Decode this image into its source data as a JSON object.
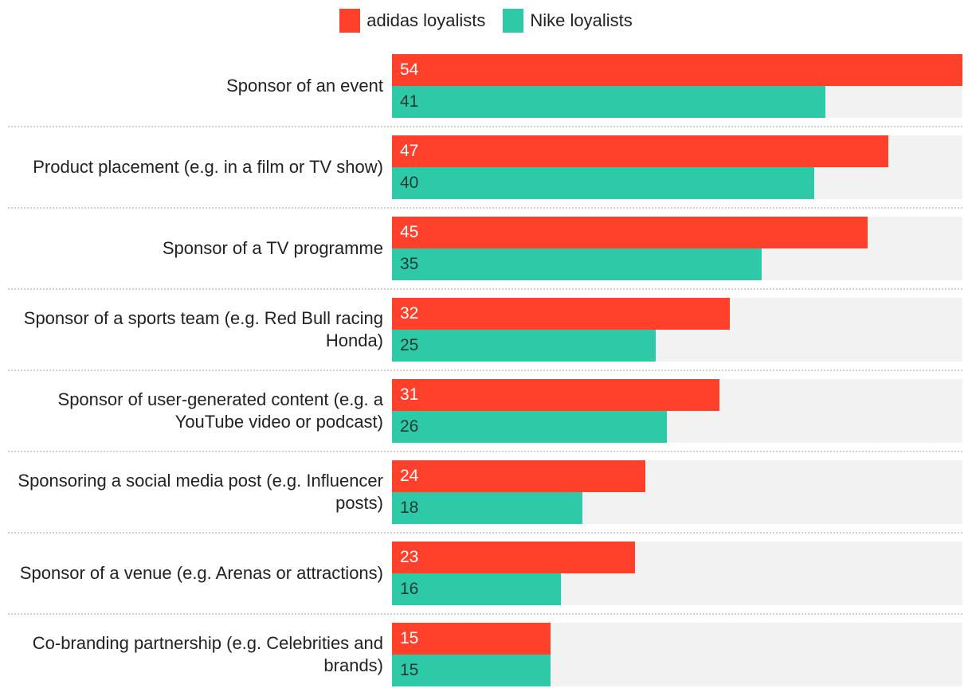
{
  "chart_data": {
    "type": "bar",
    "orientation": "horizontal",
    "title": "",
    "xlabel": "",
    "ylabel": "",
    "xlim": [
      0,
      54
    ],
    "legend_position": "top-center",
    "grid": false,
    "categories": [
      "Sponsor of an event",
      "Product placement (e.g. in a film or TV show)",
      "Sponsor of a TV programme",
      "Sponsor of a sports team (e.g. Red Bull racing Honda)",
      "Sponsor of user-generated content (e.g. a YouTube video or podcast)",
      "Sponsoring a social media post (e.g. Influencer posts)",
      "Sponsor of a venue (e.g. Arenas or attractions)",
      "Co-branding partnership (e.g. Celebrities and brands)"
    ],
    "series": [
      {
        "name": "adidas loyalists",
        "color": "#ff412c",
        "label_color": "#ffffff",
        "values": [
          54,
          47,
          45,
          32,
          31,
          24,
          23,
          15
        ]
      },
      {
        "name": "Nike loyalists",
        "color": "#2ecaa8",
        "label_color": "#1f3a34",
        "values": [
          41,
          40,
          35,
          25,
          26,
          18,
          16,
          15
        ]
      }
    ]
  }
}
